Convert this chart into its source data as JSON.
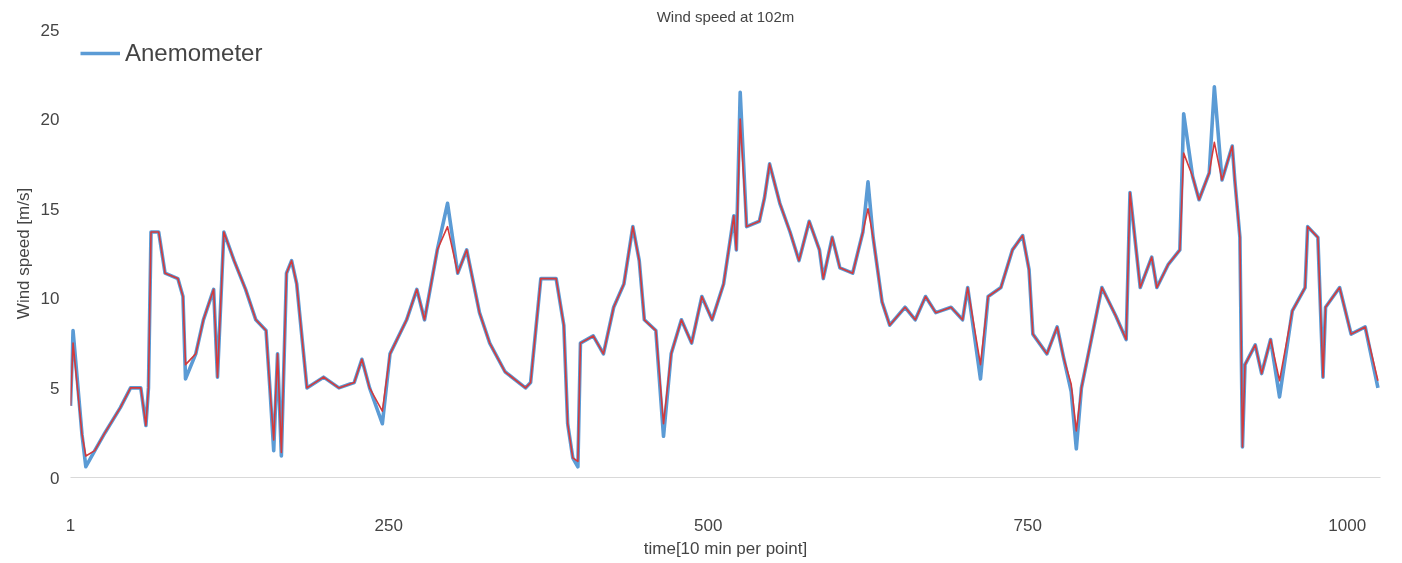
{
  "chart_data": {
    "type": "line",
    "title": "Wind speed at 102m",
    "xlabel": "time[10 min per point]",
    "ylabel": "Wind speed [m/s]",
    "x": [
      1,
      3,
      10,
      13,
      20,
      28,
      40,
      48,
      56,
      60,
      62,
      64,
      70,
      75,
      85,
      89,
      91,
      99,
      105,
      113,
      116,
      121,
      129,
      138,
      146,
      154,
      157,
      160,
      163,
      166,
      170,
      174,
      178,
      186,
      199,
      211,
      223,
      229,
      235,
      245,
      251,
      264,
      272,
      278,
      288,
      296,
      304,
      311,
      321,
      329,
      341,
      357,
      361,
      369,
      381,
      387,
      390,
      394,
      398,
      400,
      410,
      418,
      426,
      434,
      441,
      446,
      450,
      459,
      465,
      471,
      479,
      487,
      495,
      503,
      512,
      520,
      522,
      525,
      530,
      540,
      544,
      548,
      556,
      564,
      571,
      579,
      587,
      590,
      597,
      603,
      613,
      621,
      625,
      629,
      636,
      642,
      654,
      662,
      670,
      678,
      690,
      699,
      703,
      713,
      719,
      729,
      738,
      746,
      751,
      754,
      765,
      773,
      778,
      784,
      788,
      792,
      798,
      808,
      819,
      827,
      830,
      838,
      847,
      851,
      860,
      869,
      872,
      879,
      884,
      892,
      896,
      902,
      910,
      912,
      916,
      918,
      920,
      928,
      933,
      940,
      947,
      957,
      967,
      969,
      977,
      981,
      983,
      994,
      1003,
      1014,
      1024
    ],
    "series": [
      {
        "name": "Anemometer",
        "color": "#5b9bd5",
        "values": [
          4,
          8.2,
          2.4,
          0.6,
          1.5,
          2.5,
          3.9,
          5.0,
          5.0,
          2.9,
          5.0,
          13.7,
          13.7,
          11.4,
          11.1,
          10.1,
          5.5,
          6.9,
          8.8,
          10.5,
          5.6,
          13.7,
          12.1,
          10.5,
          8.8,
          8.2,
          5.0,
          1.5,
          6.9,
          1.2,
          11.4,
          12.1,
          10.8,
          5.0,
          5.6,
          5.0,
          5.3,
          6.6,
          5.0,
          3.0,
          6.9,
          8.8,
          10.5,
          8.8,
          12.7,
          15.3,
          11.4,
          12.7,
          9.2,
          7.5,
          5.9,
          5.0,
          5.3,
          11.1,
          11.1,
          8.5,
          3.0,
          1.1,
          0.6,
          7.5,
          7.9,
          6.9,
          9.5,
          10.8,
          14.0,
          12.1,
          8.8,
          8.2,
          2.3,
          6.9,
          8.8,
          7.5,
          10.1,
          8.8,
          10.8,
          14.6,
          12.7,
          21.5,
          14.0,
          14.3,
          15.6,
          17.5,
          15.3,
          13.7,
          12.1,
          14.3,
          12.7,
          11.1,
          13.4,
          11.7,
          11.4,
          13.7,
          16.5,
          13.4,
          9.8,
          8.5,
          9.5,
          8.8,
          10.1,
          9.2,
          9.5,
          8.8,
          10.6,
          5.5,
          10.1,
          10.6,
          12.7,
          13.5,
          11.6,
          8.0,
          6.9,
          8.4,
          6.7,
          4.8,
          1.6,
          5.0,
          7.1,
          10.6,
          9.0,
          7.7,
          15.9,
          10.6,
          12.3,
          10.6,
          11.9,
          12.7,
          20.3,
          16.8,
          15.5,
          17.0,
          21.8,
          16.6,
          18.5,
          16.6,
          13.4,
          1.7,
          6.3,
          7.4,
          5.8,
          7.7,
          4.5,
          9.3,
          10.6,
          14.0,
          13.4,
          5.6,
          9.5,
          10.6,
          8.0,
          8.4,
          5.0
        ]
      },
      {
        "color": "#d43a3c",
        "values": [
          4,
          7.5,
          2.4,
          1.2,
          1.5,
          2.5,
          3.9,
          5.0,
          5.0,
          2.9,
          5.0,
          13.7,
          13.7,
          11.4,
          11.1,
          10.1,
          6.3,
          6.9,
          8.8,
          10.5,
          5.6,
          13.7,
          12.1,
          10.5,
          8.8,
          8.2,
          5.0,
          2.1,
          6.9,
          1.4,
          11.4,
          12.1,
          10.8,
          5.0,
          5.6,
          5.0,
          5.3,
          6.6,
          5.0,
          3.7,
          6.9,
          8.8,
          10.5,
          8.8,
          12.7,
          14.0,
          11.4,
          12.7,
          9.2,
          7.5,
          5.9,
          5.0,
          5.3,
          11.1,
          11.1,
          8.5,
          3.0,
          1.1,
          0.9,
          7.5,
          7.9,
          6.9,
          9.5,
          10.8,
          14.0,
          12.1,
          8.8,
          8.2,
          3.0,
          6.9,
          8.8,
          7.5,
          10.1,
          8.8,
          10.8,
          14.6,
          12.7,
          20.0,
          14.0,
          14.3,
          15.6,
          17.5,
          15.3,
          13.7,
          12.1,
          14.3,
          12.7,
          11.1,
          13.4,
          11.7,
          11.4,
          13.7,
          15.0,
          13.4,
          9.8,
          8.5,
          9.5,
          8.8,
          10.1,
          9.2,
          9.5,
          8.8,
          10.6,
          6.3,
          10.1,
          10.6,
          12.7,
          13.5,
          11.6,
          8.0,
          6.9,
          8.4,
          6.7,
          5.2,
          2.6,
          5.0,
          7.1,
          10.6,
          9.0,
          7.7,
          15.9,
          10.6,
          12.3,
          10.6,
          11.9,
          12.7,
          18.1,
          16.8,
          15.5,
          17.0,
          18.7,
          16.6,
          18.5,
          16.6,
          13.4,
          1.7,
          6.3,
          7.4,
          5.8,
          7.7,
          5.4,
          9.3,
          10.6,
          14.0,
          13.4,
          5.6,
          9.5,
          10.6,
          8.0,
          8.4,
          5.4
        ]
      }
    ],
    "xlim": [
      1,
      1026
    ],
    "xticks": [
      1,
      250,
      500,
      750,
      1000
    ],
    "ylim": [
      0,
      25
    ],
    "yticks": [
      0,
      5,
      10,
      15,
      20,
      25
    ],
    "grid": false,
    "legend": "top left",
    "line_style": "solid",
    "marker": "none"
  }
}
